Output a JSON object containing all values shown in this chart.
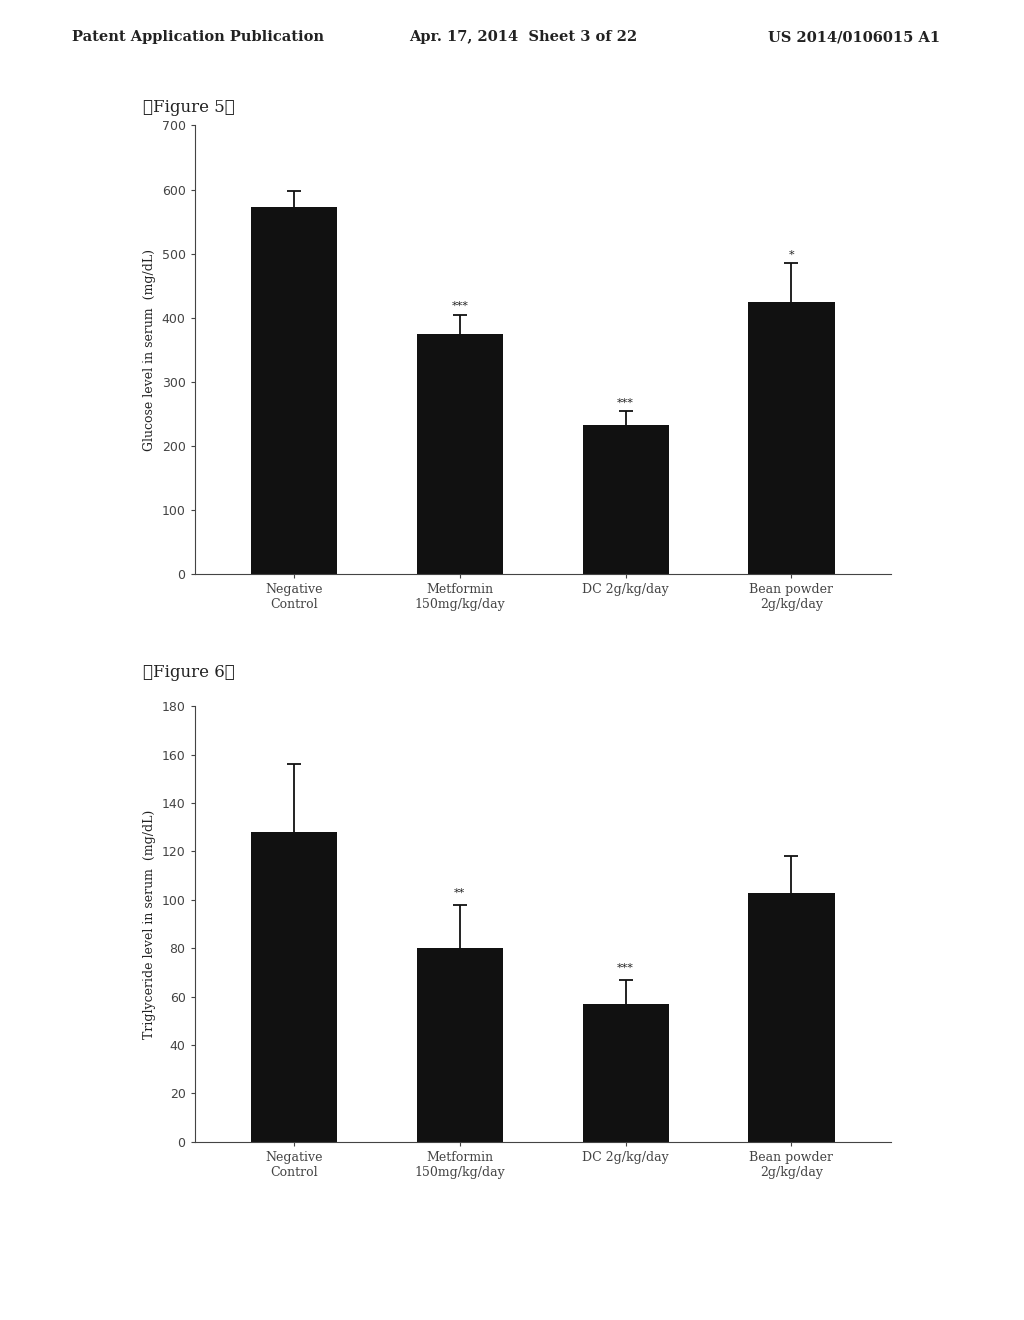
{
  "fig5": {
    "title": "【Figure 5】",
    "ylabel": "Glucose level in serum  (mg/dL)",
    "categories": [
      "Negative\nControl",
      "Metformin\n150mg/kg/day",
      "DC 2g/kg/day",
      "Bean powder\n2g/kg/day"
    ],
    "values": [
      572,
      375,
      232,
      425
    ],
    "errors": [
      25,
      30,
      22,
      60
    ],
    "ylim": [
      0,
      700
    ],
    "yticks": [
      0,
      100,
      200,
      300,
      400,
      500,
      600,
      700
    ],
    "bar_color": "#111111",
    "error_color": "#111111",
    "significance": [
      "",
      "***",
      "***",
      "*"
    ],
    "sig_offsets": [
      0,
      5,
      5,
      5
    ]
  },
  "fig6": {
    "title": "【Figure 6】",
    "ylabel": "Triglyceride level in serum  (mg/dL)",
    "categories": [
      "Negative\nControl",
      "Metformin\n150mg/kg/day",
      "DC 2g/kg/day",
      "Bean powder\n2g/kg/day"
    ],
    "values": [
      128,
      80,
      57,
      103
    ],
    "errors": [
      28,
      18,
      10,
      15
    ],
    "ylim": [
      0,
      180
    ],
    "yticks": [
      0,
      20,
      40,
      60,
      80,
      100,
      120,
      140,
      160,
      180
    ],
    "bar_color": "#111111",
    "error_color": "#111111",
    "significance": [
      "",
      "**",
      "***",
      ""
    ],
    "sig_offsets": [
      0,
      3,
      3,
      0
    ]
  },
  "header_left": "Patent Application Publication",
  "header_mid": "Apr. 17, 2014  Sheet 3 of 22",
  "header_right": "US 2014/0106015 A1",
  "bg_color": "#ffffff",
  "page_bg": "#ffffff"
}
